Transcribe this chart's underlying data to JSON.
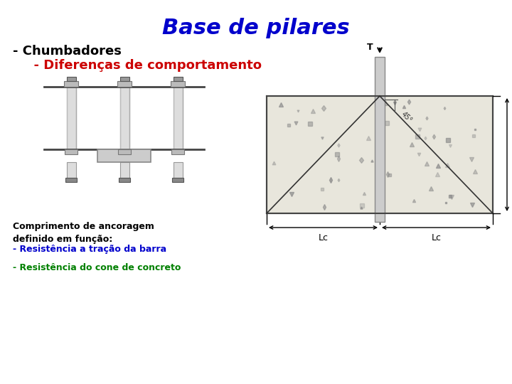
{
  "title": "Base de pilares",
  "title_color": "#0000CC",
  "title_fontsize": 22,
  "bg_color": "#FFFFFF",
  "text_chumbadores": "- Chumbadores",
  "text_chumbadores_color": "#000000",
  "text_chumbadores_fontsize": 13,
  "text_diferenca": "  - Diferenças de comportamento",
  "text_diferenca_color": "#CC0000",
  "text_diferenca_fontsize": 13,
  "text_comprimento": "Comprimento de ancoragem\ndefinido em função:",
  "text_comprimento_color": "#000000",
  "text_comprimento_fontsize": 9,
  "text_resistencia1": "- Resistência a tração da barra",
  "text_resistencia1_color": "#0000CC",
  "text_resistencia1_fontsize": 9,
  "text_resistencia2": "- Resistência do cone de concreto",
  "text_resistencia2_color": "#008000",
  "text_resistencia2_fontsize": 9,
  "concrete_color": "#E8E6DC",
  "bolt_fill": "#CCCCCC",
  "bolt_edge": "#888888",
  "line_color": "#444444",
  "dim_color": "#000000"
}
